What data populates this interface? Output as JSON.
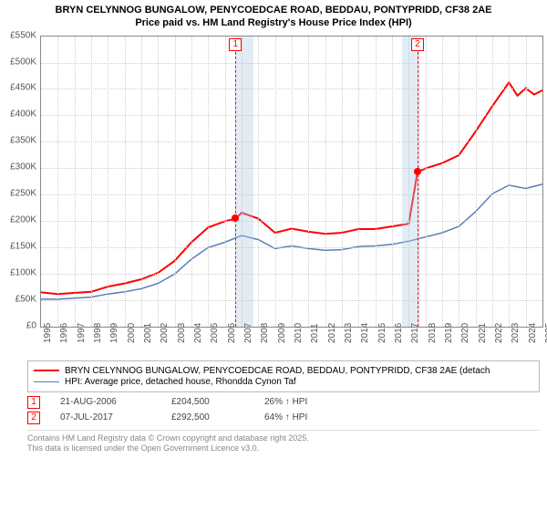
{
  "title": {
    "line1": "BRYN CELYNNOG BUNGALOW, PENYCOEDCAE ROAD, BEDDAU, PONTYPRIDD, CF38 2AE",
    "line2": "Price paid vs. HM Land Registry's House Price Index (HPI)"
  },
  "chart": {
    "type": "line",
    "xlim": [
      1995,
      2025
    ],
    "ylim": [
      0,
      550000
    ],
    "yticks": [
      0,
      50000,
      100000,
      150000,
      200000,
      250000,
      300000,
      350000,
      400000,
      450000,
      500000,
      550000
    ],
    "ytick_labels": [
      "£0",
      "£50K",
      "£100K",
      "£150K",
      "£200K",
      "£250K",
      "£300K",
      "£350K",
      "£400K",
      "£450K",
      "£500K",
      "£550K"
    ],
    "xticks": [
      1995,
      1996,
      1997,
      1998,
      1999,
      2000,
      2001,
      2002,
      2003,
      2004,
      2005,
      2006,
      2007,
      2008,
      2009,
      2010,
      2011,
      2012,
      2013,
      2014,
      2015,
      2016,
      2017,
      2018,
      2019,
      2020,
      2021,
      2022,
      2023,
      2024,
      2025
    ],
    "grid_color": "#cfcfcf",
    "background_color": "#ffffff",
    "border_color": "#888888",
    "shaded_ranges": [
      {
        "from": 2006.64,
        "to": 2007.7,
        "color": "rgba(173,201,226,0.35)"
      },
      {
        "from": 2016.6,
        "to": 2017.7,
        "color": "rgba(173,201,226,0.35)"
      }
    ],
    "series": [
      {
        "name": "price_paid",
        "label": "BRYN CELYNNOG BUNGALOW, PENYCOEDCAE ROAD, BEDDAU, PONTYPRIDD, CF38 2AE (detach",
        "color": "#ff0000",
        "line_width": 2,
        "data": [
          [
            1995,
            65000
          ],
          [
            1996,
            62000
          ],
          [
            1997,
            64000
          ],
          [
            1998,
            66000
          ],
          [
            1999,
            76000
          ],
          [
            2000,
            82000
          ],
          [
            2001,
            90000
          ],
          [
            2002,
            102000
          ],
          [
            2003,
            125000
          ],
          [
            2004,
            160000
          ],
          [
            2005,
            188000
          ],
          [
            2006,
            200000
          ],
          [
            2006.64,
            204500
          ],
          [
            2007,
            216000
          ],
          [
            2008,
            205000
          ],
          [
            2009,
            178000
          ],
          [
            2010,
            186000
          ],
          [
            2011,
            180000
          ],
          [
            2012,
            176000
          ],
          [
            2013,
            178000
          ],
          [
            2014,
            185000
          ],
          [
            2015,
            185000
          ],
          [
            2016,
            190000
          ],
          [
            2017,
            195000
          ],
          [
            2017.52,
            292500
          ],
          [
            2018,
            300000
          ],
          [
            2019,
            310000
          ],
          [
            2020,
            325000
          ],
          [
            2021,
            370000
          ],
          [
            2022,
            418000
          ],
          [
            2023,
            463000
          ],
          [
            2023.5,
            438000
          ],
          [
            2024,
            452000
          ],
          [
            2024.5,
            440000
          ],
          [
            2025,
            448000
          ]
        ]
      },
      {
        "name": "hpi",
        "label": "HPI: Average price, detached house, Rhondda Cynon Taf",
        "color": "#5a7fb5",
        "line_width": 1.5,
        "data": [
          [
            1995,
            52000
          ],
          [
            1996,
            52000
          ],
          [
            1997,
            54000
          ],
          [
            1998,
            56000
          ],
          [
            1999,
            62000
          ],
          [
            2000,
            66000
          ],
          [
            2001,
            72000
          ],
          [
            2002,
            82000
          ],
          [
            2003,
            100000
          ],
          [
            2004,
            128000
          ],
          [
            2005,
            150000
          ],
          [
            2006,
            160000
          ],
          [
            2007,
            173000
          ],
          [
            2008,
            165000
          ],
          [
            2009,
            148000
          ],
          [
            2010,
            153000
          ],
          [
            2011,
            148000
          ],
          [
            2012,
            145000
          ],
          [
            2013,
            146000
          ],
          [
            2014,
            152000
          ],
          [
            2015,
            153000
          ],
          [
            2016,
            156000
          ],
          [
            2017,
            162000
          ],
          [
            2018,
            170000
          ],
          [
            2019,
            178000
          ],
          [
            2020,
            190000
          ],
          [
            2021,
            218000
          ],
          [
            2022,
            252000
          ],
          [
            2023,
            268000
          ],
          [
            2024,
            262000
          ],
          [
            2025,
            270000
          ]
        ]
      }
    ],
    "markers": [
      {
        "num": "1",
        "x": 2006.64,
        "y": 204500
      },
      {
        "num": "2",
        "x": 2017.52,
        "y": 292500
      }
    ],
    "label_fontsize": 10
  },
  "legend": {
    "items": [
      {
        "color": "#ff0000",
        "width": 2,
        "text": "BRYN CELYNNOG BUNGALOW, PENYCOEDCAE ROAD, BEDDAU, PONTYPRIDD, CF38 2AE (detach"
      },
      {
        "color": "#5a7fb5",
        "width": 1.5,
        "text": "HPI: Average price, detached house, Rhondda Cynon Taf"
      }
    ]
  },
  "events": [
    {
      "num": "1",
      "date": "21-AUG-2006",
      "price": "£204,500",
      "delta": "26% ↑ HPI"
    },
    {
      "num": "2",
      "date": "07-JUL-2017",
      "price": "£292,500",
      "delta": "64% ↑ HPI"
    }
  ],
  "footer": {
    "line1": "Contains HM Land Registry data © Crown copyright and database right 2025.",
    "line2": "This data is licensed under the Open Government Licence v3.0."
  }
}
